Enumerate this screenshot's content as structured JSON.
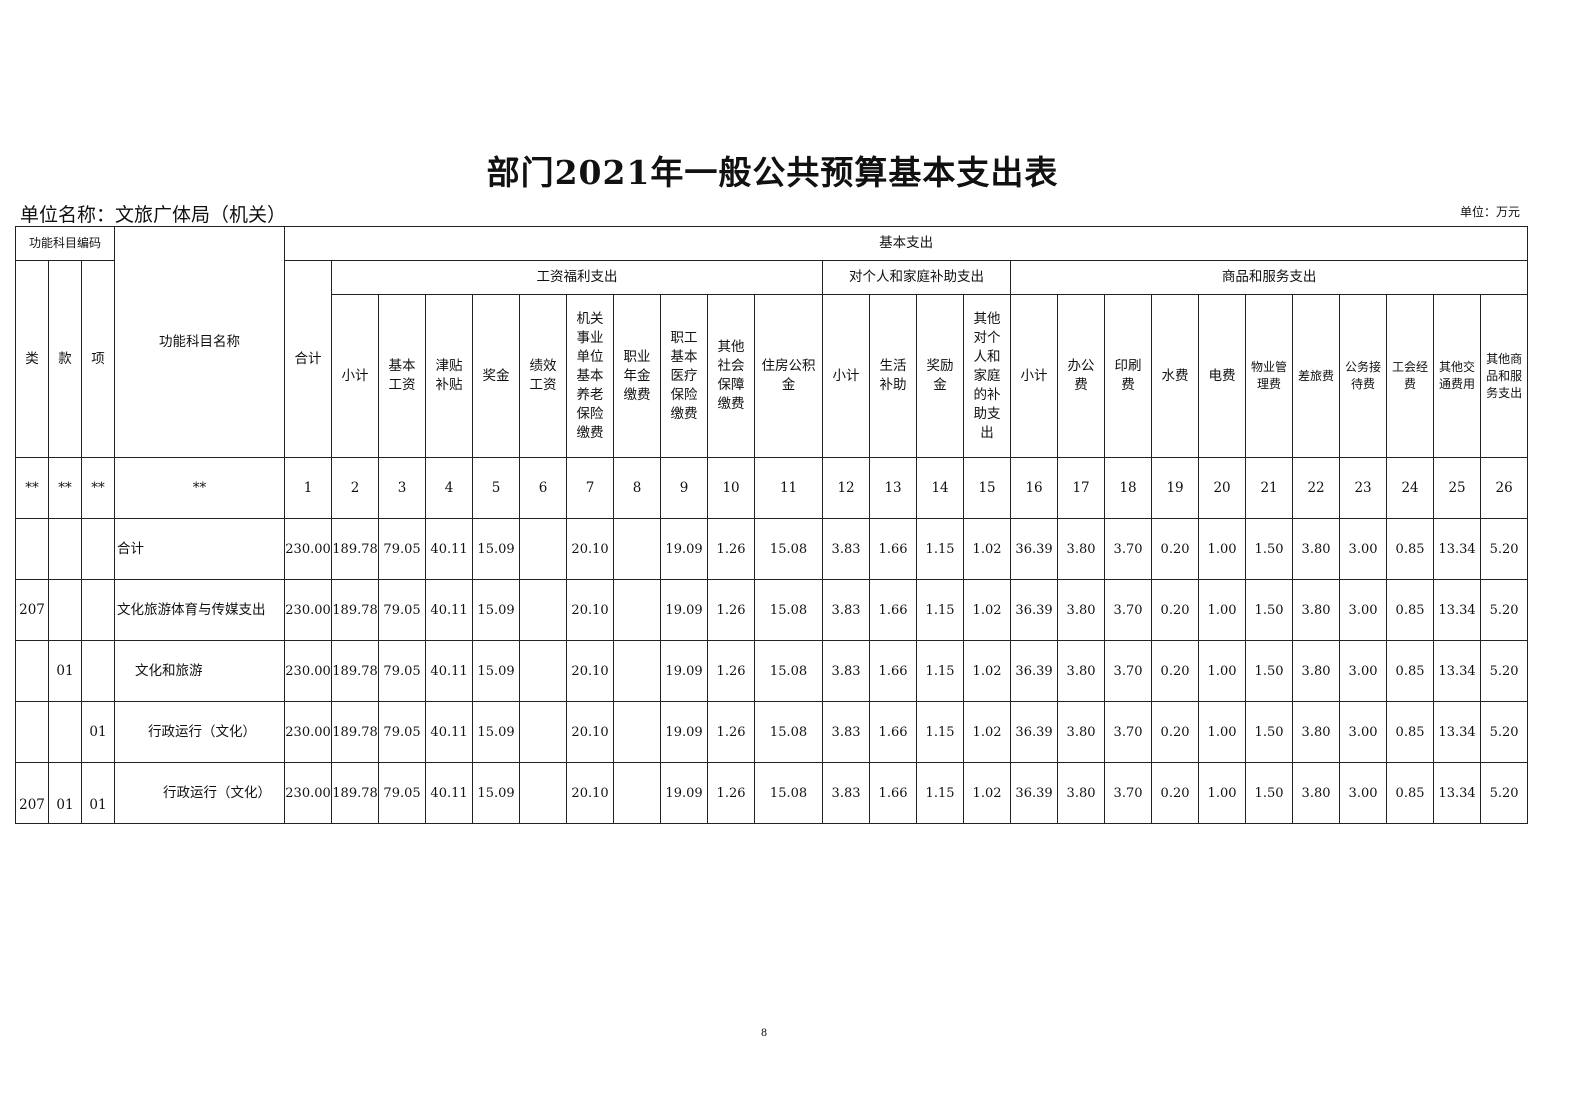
{
  "title": "部门2021年一般公共预算基本支出表",
  "unit_name": "单位名称：文旅广体局（机关）",
  "unit": "单位：万元",
  "header": {
    "code_group": "功能科目编码",
    "name_col": "功能科目名称",
    "basic": "基本支出",
    "lei": "类",
    "kuan": "款",
    "xiang": "项",
    "total": "合计",
    "groups": [
      "工资福利支出",
      "对个人和家庭补助支出",
      "商品和服务支出"
    ],
    "cols": [
      "小计",
      "基本工资",
      "津贴补贴",
      "奖金",
      "绩效工资",
      "机关事业单位基本养老保险缴费",
      "职业年金缴费",
      "职工基本医疗保险缴费",
      "其他社会保障缴费",
      "住房公积金",
      "小计",
      "生活补助",
      "奖励金",
      "其他对个人和家庭的补助支出",
      "小计",
      "办公费",
      "印刷费",
      "水费",
      "电费",
      "物业管理费",
      "差旅费",
      "公务接待费",
      "工会经费",
      "其他交通费用",
      "其他商品和服务支出"
    ],
    "index_row": [
      "**",
      "**",
      "**",
      "**",
      "1",
      "2",
      "3",
      "4",
      "5",
      "6",
      "7",
      "8",
      "9",
      "10",
      "11",
      "12",
      "13",
      "14",
      "15",
      "16",
      "17",
      "18",
      "19",
      "20",
      "21",
      "22",
      "23",
      "24",
      "25",
      "26"
    ]
  },
  "rows": [
    {
      "lei": "",
      "kuan": "",
      "xiang": "",
      "name": "合计",
      "values": [
        "230.00",
        "189.78",
        "79.05",
        "40.11",
        "15.09",
        "",
        "20.10",
        "",
        "19.09",
        "1.26",
        "15.08",
        "3.83",
        "1.66",
        "1.15",
        "1.02",
        "36.39",
        "3.80",
        "3.70",
        "0.20",
        "1.00",
        "1.50",
        "3.80",
        "3.00",
        "0.85",
        "13.34",
        "5.20"
      ]
    },
    {
      "lei": "207",
      "kuan": "",
      "xiang": "",
      "name": "文化旅游体育与传媒支出",
      "values": [
        "230.00",
        "189.78",
        "79.05",
        "40.11",
        "15.09",
        "",
        "20.10",
        "",
        "19.09",
        "1.26",
        "15.08",
        "3.83",
        "1.66",
        "1.15",
        "1.02",
        "36.39",
        "3.80",
        "3.70",
        "0.20",
        "1.00",
        "1.50",
        "3.80",
        "3.00",
        "0.85",
        "13.34",
        "5.20"
      ]
    },
    {
      "lei": "",
      "kuan": "01",
      "xiang": "",
      "name": "文化和旅游",
      "values": [
        "230.00",
        "189.78",
        "79.05",
        "40.11",
        "15.09",
        "",
        "20.10",
        "",
        "19.09",
        "1.26",
        "15.08",
        "3.83",
        "1.66",
        "1.15",
        "1.02",
        "36.39",
        "3.80",
        "3.70",
        "0.20",
        "1.00",
        "1.50",
        "3.80",
        "3.00",
        "0.85",
        "13.34",
        "5.20"
      ]
    },
    {
      "lei": "",
      "kuan": "",
      "xiang": "01",
      "name": "行政运行（文化）",
      "values": [
        "230.00",
        "189.78",
        "79.05",
        "40.11",
        "15.09",
        "",
        "20.10",
        "",
        "19.09",
        "1.26",
        "15.08",
        "3.83",
        "1.66",
        "1.15",
        "1.02",
        "36.39",
        "3.80",
        "3.70",
        "0.20",
        "1.00",
        "1.50",
        "3.80",
        "3.00",
        "0.85",
        "13.34",
        "5.20"
      ]
    },
    {
      "lei": "207",
      "kuan": "01",
      "xiang": "01",
      "name": "行政运行（文化）",
      "values": [
        "230.00",
        "189.78",
        "79.05",
        "40.11",
        "15.09",
        "",
        "20.10",
        "",
        "19.09",
        "1.26",
        "15.08",
        "3.83",
        "1.66",
        "1.15",
        "1.02",
        "36.39",
        "3.80",
        "3.70",
        "0.20",
        "1.00",
        "1.50",
        "3.80",
        "3.00",
        "0.85",
        "13.34",
        "5.20"
      ]
    }
  ],
  "page_number": "8"
}
